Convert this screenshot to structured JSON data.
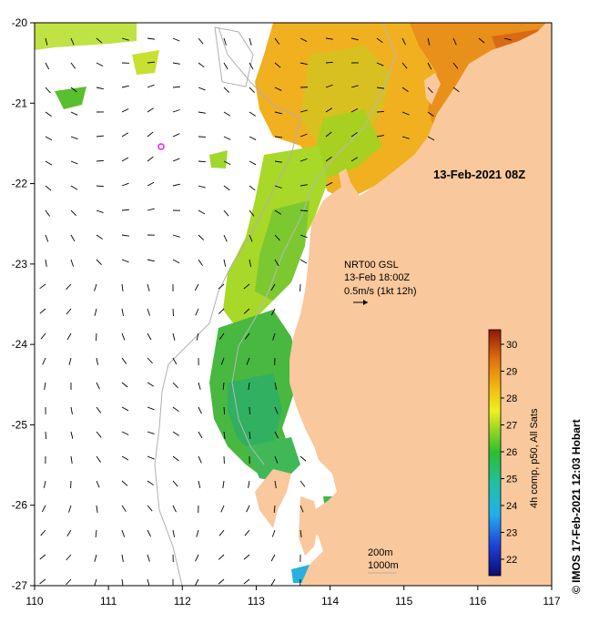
{
  "map": {
    "date_label": "13-Feb-2021 08Z",
    "current_info": {
      "line1": "NRT00 GSL",
      "line2": "13-Feb 18:00Z",
      "line3": "0.5m/s (1kt 12h)"
    },
    "depth_labels": [
      "200m",
      "1000m"
    ],
    "colorbar_title": "4h comp, p50, All Sats",
    "colorbar_ticks": [
      "30",
      "29",
      "28",
      "27",
      "26",
      "25",
      "24",
      "23",
      "22"
    ],
    "credit": "© IMOS 17-Feb-2021 12:03 Hobart",
    "lat_ticks": [
      "-20",
      "-21",
      "-22",
      "-23",
      "-24",
      "-25",
      "-26",
      "-27"
    ],
    "lon_ticks": [
      "110",
      "111",
      "112",
      "113",
      "114",
      "115",
      "116",
      "117"
    ],
    "colors": {
      "land": "#f9c89c",
      "ocean": "#ffffff",
      "marker": "#e020e0"
    },
    "icons": [
      "velocity-arrow-icon",
      "mooring-marker-icon"
    ]
  }
}
